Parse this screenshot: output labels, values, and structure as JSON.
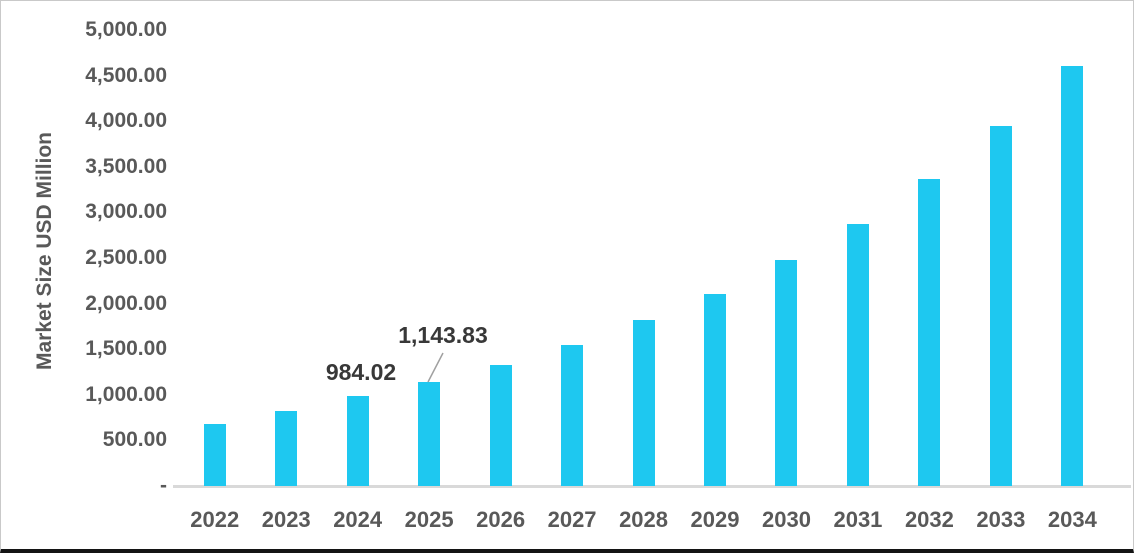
{
  "chart_data": {
    "type": "bar",
    "title": "",
    "xlabel": "",
    "ylabel": "Market Size USD Million",
    "categories": [
      "2022",
      "2023",
      "2024",
      "2025",
      "2026",
      "2027",
      "2028",
      "2029",
      "2030",
      "2031",
      "2032",
      "2033",
      "2034"
    ],
    "values": [
      685,
      820,
      984.02,
      1143.83,
      1325,
      1545,
      1815,
      2105,
      2475,
      2870,
      3370,
      3945,
      4600
    ],
    "ylim": [
      0,
      5000
    ],
    "ytick_interval": 500,
    "ytick_labels": [
      "5,000.00",
      "4,500.00",
      "4,000.00",
      "3,500.00",
      "3,000.00",
      "2,500.00",
      "2,000.00",
      "1,500.00",
      "1,000.00",
      "500.00",
      "-"
    ],
    "grid": false,
    "legend": false,
    "bar_color": "#1ec8f0",
    "axis_text_color": "#595959",
    "data_label_color": "#383838",
    "axis_line_color": "#d9d9d9",
    "annotations": [
      {
        "category": "2024",
        "label": "984.02",
        "leader_line": false
      },
      {
        "category": "2025",
        "label": "1,143.83",
        "leader_line": true
      }
    ]
  }
}
